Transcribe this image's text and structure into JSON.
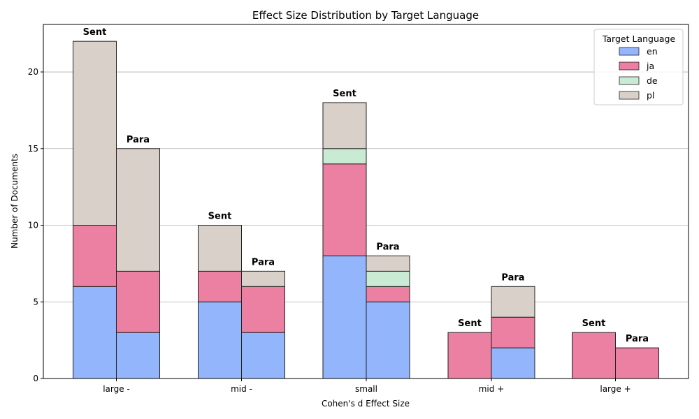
{
  "chart_data": {
    "type": "bar",
    "stacked": true,
    "title": "Effect Size Distribution by Target Language",
    "xlabel": "Cohen's d Effect Size",
    "ylabel": "Number of Documents",
    "categories": [
      "large -",
      "mid -",
      "small",
      "mid +",
      "large +"
    ],
    "groups": [
      "Sent",
      "Para"
    ],
    "group_labels": [
      "Sent",
      "Para"
    ],
    "ylim": [
      0,
      23.1
    ],
    "yticks": [
      0,
      5,
      10,
      15,
      20
    ],
    "grid": "y",
    "legend": {
      "title": "Target Language",
      "position": "top-right"
    },
    "series": [
      {
        "name": "en",
        "color": "#93b5fb",
        "values": {
          "Sent": [
            6,
            5,
            8,
            0,
            0
          ],
          "Para": [
            3,
            3,
            5,
            2,
            0
          ]
        }
      },
      {
        "name": "ja",
        "color": "#ec80a2",
        "values": {
          "Sent": [
            4,
            2,
            6,
            3,
            3
          ],
          "Para": [
            4,
            3,
            1,
            2,
            2
          ]
        }
      },
      {
        "name": "de",
        "color": "#c9ebd3",
        "values": {
          "Sent": [
            0,
            0,
            1,
            0,
            0
          ],
          "Para": [
            0,
            0,
            1,
            0,
            0
          ]
        }
      },
      {
        "name": "pl",
        "color": "#d9d1c9",
        "values": {
          "Sent": [
            12,
            3,
            3,
            0,
            0
          ],
          "Para": [
            8,
            1,
            1,
            2,
            0
          ]
        }
      }
    ]
  }
}
